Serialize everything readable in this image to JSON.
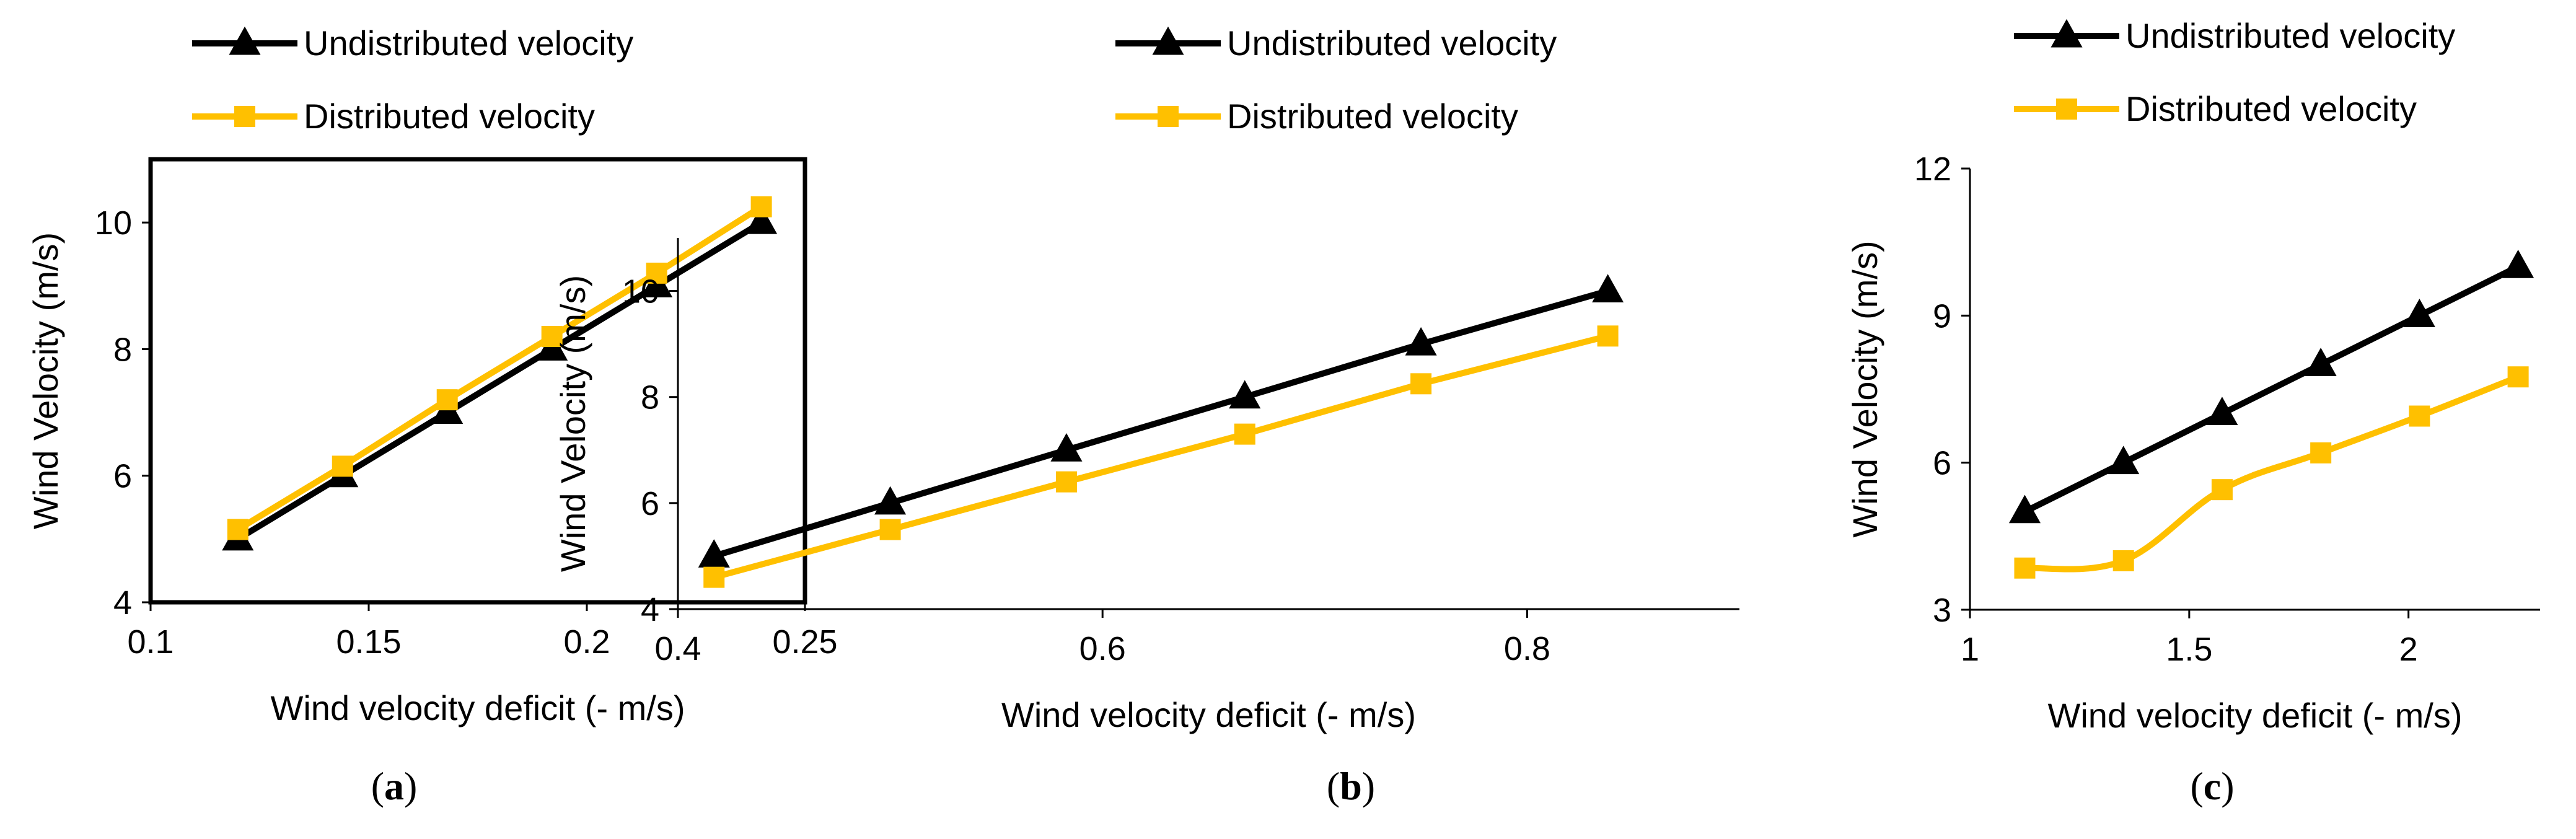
{
  "colors": {
    "undistributed": "#000000",
    "distributed": "#FFC000",
    "axis": "#000000",
    "background": "#FFFFFF"
  },
  "legend": {
    "undistributed_label": "Undistributed velocity",
    "distributed_label": "Distributed velocity"
  },
  "chart_data": [
    {
      "type": "line",
      "panel": "a",
      "caption_letter": "a",
      "xlabel": "Wind velocity deficit (- m/s)",
      "ylabel": "Wind Velocity (m/s)",
      "xlim": [
        0.1,
        0.25
      ],
      "ylim": [
        4,
        11
      ],
      "xticks": [
        0.1,
        0.15,
        0.2,
        0.25
      ],
      "xtick_labels": [
        "0.1",
        "0.15",
        "0.2",
        "0.25"
      ],
      "yticks": [
        4,
        6,
        8,
        10
      ],
      "ytick_labels": [
        "4",
        "6",
        "8",
        "10"
      ],
      "legend_position": "top",
      "series": [
        {
          "name": "Undistributed velocity",
          "marker": "triangle",
          "smooth": false,
          "x": [
            0.12,
            0.144,
            0.168,
            0.192,
            0.216,
            0.24
          ],
          "y": [
            5,
            6,
            7,
            8,
            9,
            10
          ]
        },
        {
          "name": "Distributed velocity",
          "marker": "square",
          "smooth": false,
          "x": [
            0.12,
            0.144,
            0.168,
            0.192,
            0.216,
            0.24
          ],
          "y": [
            5.15,
            6.15,
            7.2,
            8.2,
            9.2,
            10.25
          ]
        }
      ]
    },
    {
      "type": "line",
      "panel": "b",
      "caption_letter": "b",
      "xlabel": "Wind velocity deficit (- m/s)",
      "ylabel": "Wind Velocity (m/s)",
      "xlim": [
        0.4,
        0.9
      ],
      "ylim": [
        4,
        11
      ],
      "xticks": [
        0.4,
        0.6,
        0.8
      ],
      "xtick_labels": [
        "0.4",
        "0.6",
        "0.8"
      ],
      "yticks": [
        4,
        6,
        8,
        10
      ],
      "ytick_labels": [
        "4",
        "6",
        "8",
        "10"
      ],
      "legend_position": "top",
      "series": [
        {
          "name": "Undistributed velocity",
          "marker": "triangle",
          "smooth": false,
          "x": [
            0.417,
            0.5,
            0.583,
            0.667,
            0.75,
            0.838
          ],
          "y": [
            5,
            6,
            7,
            8,
            9,
            10
          ]
        },
        {
          "name": "Distributed velocity",
          "marker": "square",
          "smooth": false,
          "x": [
            0.417,
            0.5,
            0.583,
            0.667,
            0.75,
            0.838
          ],
          "y": [
            4.6,
            5.5,
            6.4,
            7.3,
            8.25,
            9.15
          ]
        }
      ]
    },
    {
      "type": "line",
      "panel": "c",
      "caption_letter": "c",
      "xlabel": "Wind velocity deficit (- m/s)",
      "ylabel": "Wind Velocity (m/s)",
      "xlim": [
        1,
        2.3
      ],
      "ylim": [
        3,
        12
      ],
      "xticks": [
        1,
        1.5,
        2
      ],
      "xtick_labels": [
        "1",
        "1.5",
        "2"
      ],
      "yticks": [
        3,
        6,
        9,
        12
      ],
      "ytick_labels": [
        "3",
        "6",
        "9",
        "12"
      ],
      "legend_position": "top",
      "series": [
        {
          "name": "Undistributed velocity",
          "marker": "triangle",
          "smooth": false,
          "x": [
            1.125,
            1.35,
            1.575,
            1.8,
            2.025,
            2.25
          ],
          "y": [
            5,
            6,
            7,
            8,
            9,
            10
          ]
        },
        {
          "name": "Distributed velocity",
          "marker": "square",
          "smooth": true,
          "x": [
            1.125,
            1.35,
            1.575,
            1.8,
            2.025,
            2.25
          ],
          "y": [
            3.85,
            4.0,
            5.45,
            6.2,
            6.95,
            7.75
          ]
        }
      ]
    }
  ]
}
